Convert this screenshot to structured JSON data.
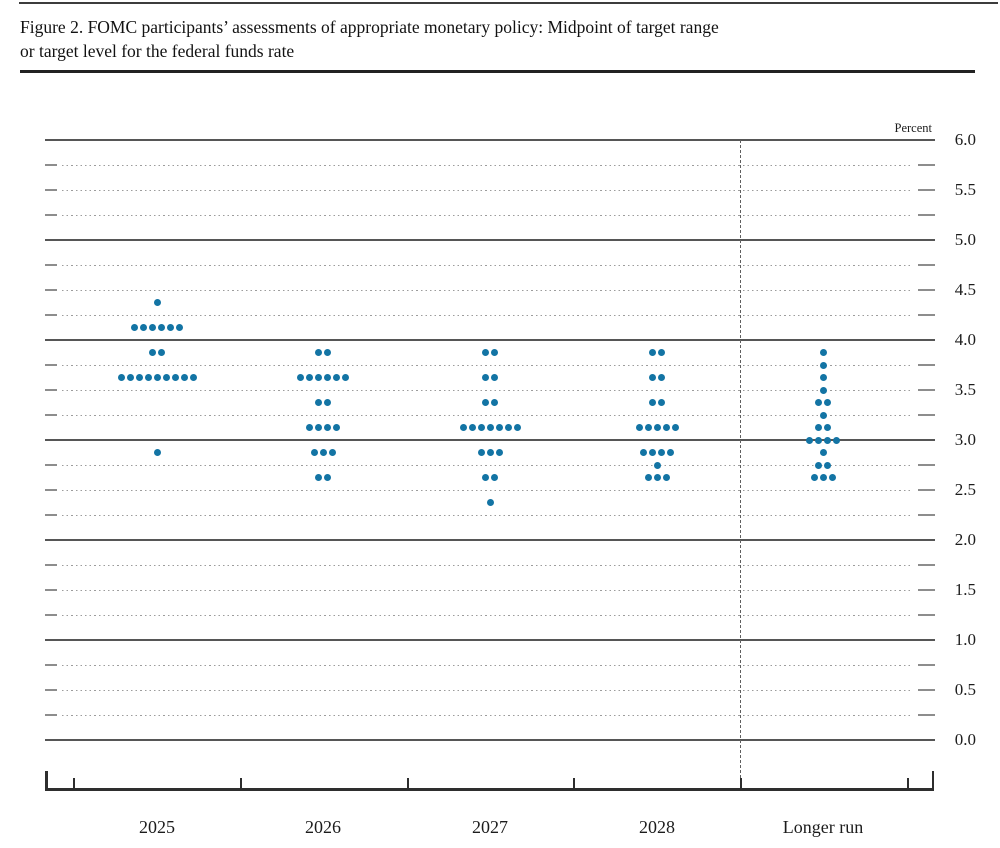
{
  "header": {
    "title_line1": "Figure 2. FOMC participants’ assessments of appropriate monetary policy: Midpoint of target range",
    "title_line2": "or target level for the federal funds rate"
  },
  "chart_data": {
    "type": "scatter",
    "title": "Figure 2. FOMC participants’ assessments of appropriate monetary policy: Midpoint of target range or target level for the federal funds rate",
    "ylabel": "Percent",
    "xlabel": "",
    "ylim": [
      0.0,
      6.0
    ],
    "y_grid_step": 0.25,
    "grid": "dotted lines at each quarter point, solid lines at whole percents",
    "legend_position": "none",
    "y_tick_labels": [
      "6.0",
      "5.5",
      "5.0",
      "4.5",
      "4.0",
      "3.5",
      "3.0",
      "2.5",
      "2.0",
      "1.5",
      "1.0",
      "0.5",
      "0.0"
    ],
    "categories": [
      "2025",
      "2026",
      "2027",
      "2028",
      "Longer run"
    ],
    "separator_after_category_index": 3,
    "dot_color": "#1374a4",
    "participants_per_column": 19,
    "series": [
      {
        "category": "2025",
        "dots": [
          {
            "value": 4.375,
            "count": 1
          },
          {
            "value": 4.125,
            "count": 6
          },
          {
            "value": 3.875,
            "count": 2
          },
          {
            "value": 3.625,
            "count": 9
          },
          {
            "value": 2.875,
            "count": 1
          }
        ]
      },
      {
        "category": "2026",
        "dots": [
          {
            "value": 3.875,
            "count": 2
          },
          {
            "value": 3.625,
            "count": 6
          },
          {
            "value": 3.375,
            "count": 2
          },
          {
            "value": 3.125,
            "count": 4
          },
          {
            "value": 2.875,
            "count": 3
          },
          {
            "value": 2.625,
            "count": 2
          }
        ]
      },
      {
        "category": "2027",
        "dots": [
          {
            "value": 3.875,
            "count": 2
          },
          {
            "value": 3.625,
            "count": 2
          },
          {
            "value": 3.375,
            "count": 2
          },
          {
            "value": 3.125,
            "count": 7
          },
          {
            "value": 2.875,
            "count": 3
          },
          {
            "value": 2.625,
            "count": 2
          },
          {
            "value": 2.375,
            "count": 1
          }
        ]
      },
      {
        "category": "2028",
        "dots": [
          {
            "value": 3.875,
            "count": 2
          },
          {
            "value": 3.625,
            "count": 2
          },
          {
            "value": 3.375,
            "count": 2
          },
          {
            "value": 3.125,
            "count": 5
          },
          {
            "value": 2.875,
            "count": 4
          },
          {
            "value": 2.75,
            "count": 1
          },
          {
            "value": 2.625,
            "count": 3
          }
        ]
      },
      {
        "category": "Longer run",
        "dots": [
          {
            "value": 3.875,
            "count": 1
          },
          {
            "value": 3.75,
            "count": 1
          },
          {
            "value": 3.625,
            "count": 1
          },
          {
            "value": 3.5,
            "count": 1
          },
          {
            "value": 3.375,
            "count": 2
          },
          {
            "value": 3.25,
            "count": 1
          },
          {
            "value": 3.125,
            "count": 2
          },
          {
            "value": 3.0,
            "count": 4
          },
          {
            "value": 2.875,
            "count": 1
          },
          {
            "value": 2.75,
            "count": 2
          },
          {
            "value": 2.625,
            "count": 3
          }
        ]
      }
    ]
  }
}
